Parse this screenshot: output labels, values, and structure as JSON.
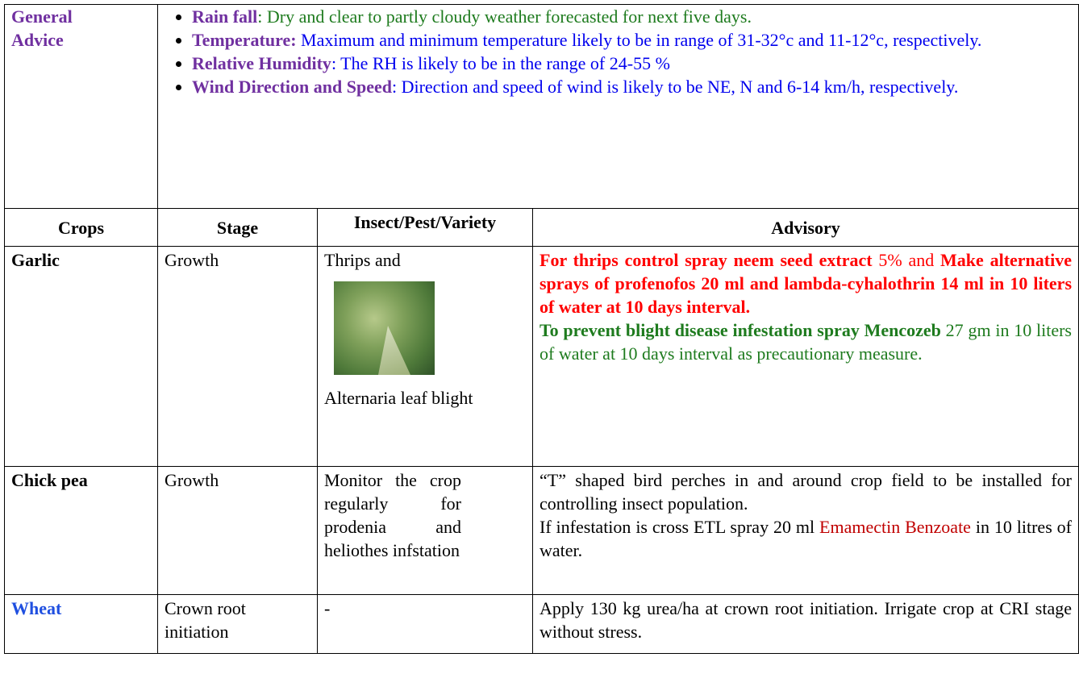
{
  "general_advice": {
    "label_lines": [
      "General",
      "Advice"
    ],
    "items": [
      {
        "label": "Rain fall",
        "text": ": Dry and clear to partly cloudy weather forecasted for next five days."
      },
      {
        "label": "Temperature:",
        "text": " Maximum and minimum temperature likely to be in range of 31-32°c and 11-12°c, respectively."
      },
      {
        "label": "Relative Humidity",
        "text": ": The RH is likely to be in the range of  24-55 %"
      },
      {
        "label": "Wind Direction and Speed",
        "text": ": Direction and speed of wind is likely to be NE, N  and 6-14 km/h, respectively."
      }
    ]
  },
  "table": {
    "headers": [
      "Crops",
      "Stage",
      "Insect/Pest/Variety",
      "Advisory"
    ],
    "rows": [
      {
        "crop": "Garlic",
        "stage": "Growth",
        "pest_before": "Thrips and",
        "pest_after": "Alternaria leaf blight",
        "advisory": {
          "bold_red_1": "For thrips control spray neem seed extract",
          "red_1": " 5% and ",
          "bold_red_2": "Make alternative sprays of profenofos  20 ml and lambda-cyhalothrin 14 ml in 10 liters of water at 10 days interval.",
          "bold_green": "To prevent blight disease infestation spray Mencozeb",
          "green": " 27 gm in 10 liters of water at 10 days interval as precautionary measure."
        }
      },
      {
        "crop": "Chick pea",
        "stage": "Growth",
        "pest": "Monitor the crop regularly for prodenia and heliothes infstation",
        "advisory": {
          "line_1": "“T” shaped bird perches in and around crop field to be installed for controlling insect population.",
          "line_2_start": "If infestation is cross ETL spray 20 ml ",
          "line_2_highlight": "Emamectin Benzoate",
          "line_2_end": " in 10 litres of water."
        }
      },
      {
        "crop": "Wheat",
        "stage": "Crown root initiation",
        "pest": "-",
        "advisory": "Apply 130 kg urea/ha at crown root initiation. Irrigate crop at CRI stage without stress."
      }
    ]
  }
}
